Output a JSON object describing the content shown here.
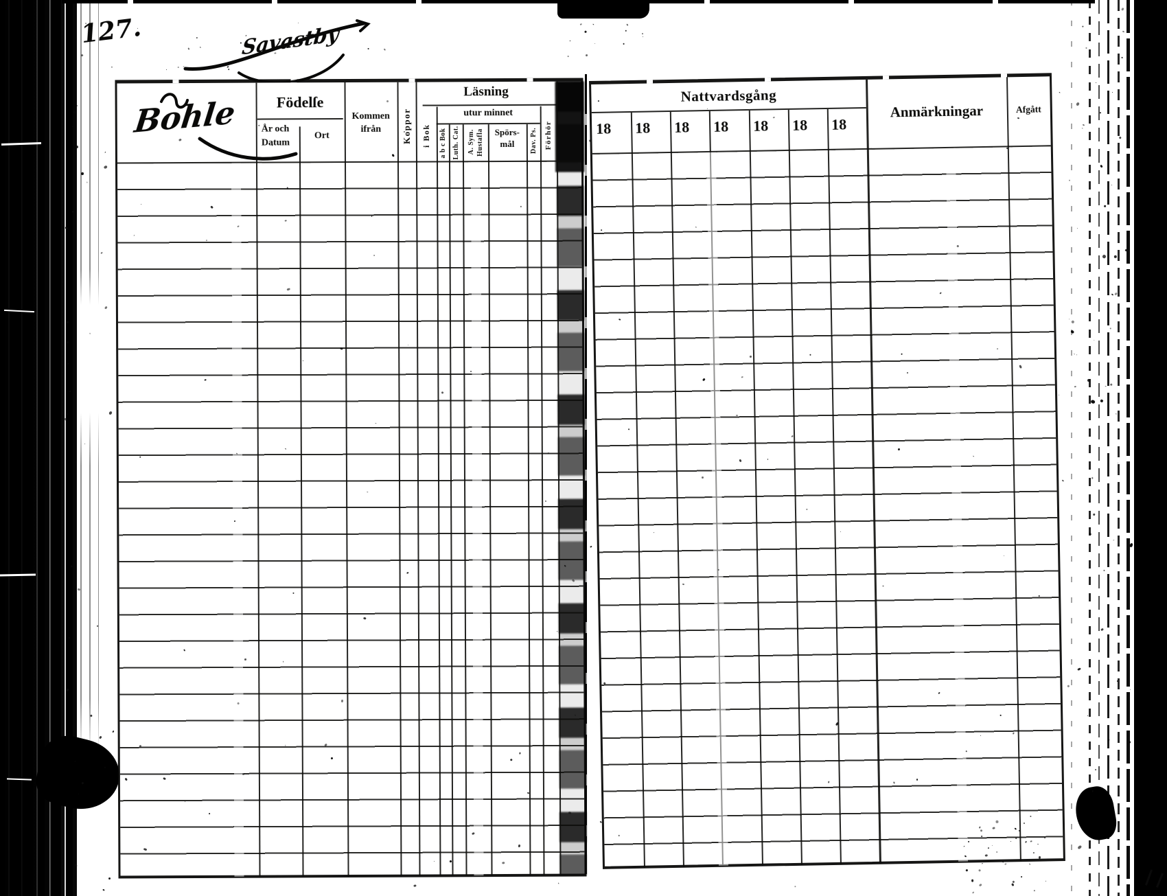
{
  "document": {
    "page_number": "127.",
    "place_name": "Savastby",
    "surname": "Bohle"
  },
  "left_table": {
    "birth_group": "Födelſe",
    "col_year_date_line1": "År och",
    "col_year_date_line2": "Datum",
    "col_place": "Ort",
    "col_come_from_line1": "Kommen",
    "col_come_from_line2": "ifrån",
    "col_smallpox": "Koppor",
    "reading_group": "Läsning",
    "from_memory": "utur minnet",
    "col_in_book": "i Bok",
    "col_abc_book": "a b c Bok",
    "col_luther_cat": "Luth. Cat.",
    "col_athanasian": "A. Sym.",
    "col_hustafla": "Hustafla",
    "col_questions_line1": "Spörs-",
    "col_questions_line2": "mål",
    "col_psalms": "Dav. Ps.",
    "col_examination": "Förhör"
  },
  "right_table": {
    "communion_group": "Nattvardsgång",
    "years": [
      "18",
      "18",
      "18",
      "18",
      "18",
      "18",
      "18"
    ],
    "col_remarks": "Anmärkningar",
    "col_departed": "Afgått"
  },
  "ink": {
    "color": "#0c0c0a"
  }
}
